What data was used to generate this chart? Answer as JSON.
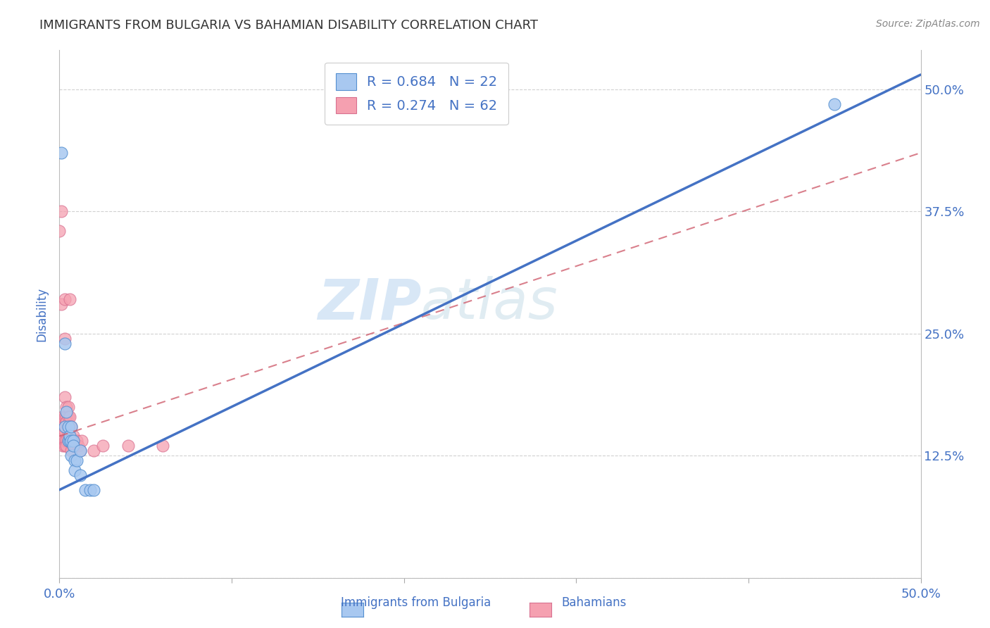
{
  "title": "IMMIGRANTS FROM BULGARIA VS BAHAMIAN DISABILITY CORRELATION CHART",
  "source": "Source: ZipAtlas.com",
  "ylabel": "Disability",
  "yticks": [
    0.0,
    0.125,
    0.25,
    0.375,
    0.5
  ],
  "ytick_labels": [
    "",
    "12.5%",
    "25.0%",
    "37.5%",
    "50.0%"
  ],
  "xlim": [
    0.0,
    0.5
  ],
  "ylim": [
    0.0,
    0.54
  ],
  "legend_line1": "R = 0.684   N = 22",
  "legend_line2": "R = 0.274   N = 62",
  "watermark_zip": "ZIP",
  "watermark_atlas": "atlas",
  "blue_scatter": [
    [
      0.001,
      0.435
    ],
    [
      0.003,
      0.24
    ],
    [
      0.003,
      0.155
    ],
    [
      0.004,
      0.17
    ],
    [
      0.005,
      0.155
    ],
    [
      0.005,
      0.14
    ],
    [
      0.006,
      0.14
    ],
    [
      0.006,
      0.145
    ],
    [
      0.007,
      0.14
    ],
    [
      0.007,
      0.155
    ],
    [
      0.007,
      0.125
    ],
    [
      0.008,
      0.14
    ],
    [
      0.008,
      0.135
    ],
    [
      0.009,
      0.12
    ],
    [
      0.009,
      0.11
    ],
    [
      0.01,
      0.12
    ],
    [
      0.012,
      0.105
    ],
    [
      0.012,
      0.13
    ],
    [
      0.015,
      0.09
    ],
    [
      0.018,
      0.09
    ],
    [
      0.02,
      0.09
    ],
    [
      0.45,
      0.485
    ]
  ],
  "pink_scatter": [
    [
      0.0,
      0.355
    ],
    [
      0.0,
      0.14
    ],
    [
      0.0,
      0.14
    ],
    [
      0.001,
      0.375
    ],
    [
      0.001,
      0.28
    ],
    [
      0.001,
      0.155
    ],
    [
      0.001,
      0.155
    ],
    [
      0.001,
      0.16
    ],
    [
      0.001,
      0.16
    ],
    [
      0.001,
      0.16
    ],
    [
      0.001,
      0.155
    ],
    [
      0.001,
      0.15
    ],
    [
      0.001,
      0.14
    ],
    [
      0.001,
      0.14
    ],
    [
      0.001,
      0.14
    ],
    [
      0.002,
      0.165
    ],
    [
      0.002,
      0.16
    ],
    [
      0.002,
      0.155
    ],
    [
      0.002,
      0.15
    ],
    [
      0.002,
      0.15
    ],
    [
      0.002,
      0.145
    ],
    [
      0.002,
      0.14
    ],
    [
      0.002,
      0.14
    ],
    [
      0.002,
      0.14
    ],
    [
      0.002,
      0.135
    ],
    [
      0.003,
      0.285
    ],
    [
      0.003,
      0.245
    ],
    [
      0.003,
      0.185
    ],
    [
      0.003,
      0.165
    ],
    [
      0.003,
      0.155
    ],
    [
      0.003,
      0.155
    ],
    [
      0.003,
      0.15
    ],
    [
      0.003,
      0.14
    ],
    [
      0.003,
      0.135
    ],
    [
      0.004,
      0.175
    ],
    [
      0.004,
      0.165
    ],
    [
      0.004,
      0.16
    ],
    [
      0.004,
      0.14
    ],
    [
      0.004,
      0.135
    ],
    [
      0.005,
      0.175
    ],
    [
      0.005,
      0.165
    ],
    [
      0.005,
      0.155
    ],
    [
      0.005,
      0.15
    ],
    [
      0.005,
      0.14
    ],
    [
      0.006,
      0.285
    ],
    [
      0.006,
      0.165
    ],
    [
      0.006,
      0.155
    ],
    [
      0.006,
      0.14
    ],
    [
      0.007,
      0.155
    ],
    [
      0.007,
      0.14
    ],
    [
      0.007,
      0.13
    ],
    [
      0.008,
      0.145
    ],
    [
      0.008,
      0.135
    ],
    [
      0.009,
      0.135
    ],
    [
      0.01,
      0.14
    ],
    [
      0.011,
      0.135
    ],
    [
      0.012,
      0.13
    ],
    [
      0.013,
      0.14
    ],
    [
      0.02,
      0.13
    ],
    [
      0.025,
      0.135
    ],
    [
      0.04,
      0.135
    ],
    [
      0.06,
      0.135
    ]
  ],
  "blue_line_x": [
    0.0,
    0.5
  ],
  "blue_line_y": [
    0.09,
    0.515
  ],
  "pink_line_x": [
    0.0,
    0.5
  ],
  "pink_line_y": [
    0.145,
    0.435
  ],
  "blue_line_color": "#4472c4",
  "pink_line_color": "#d06070",
  "scatter_blue_color": "#a8c8f0",
  "scatter_pink_color": "#f5a0b0",
  "scatter_blue_edge": "#5590d0",
  "scatter_pink_edge": "#d87090",
  "grid_color": "#cccccc",
  "title_color": "#333333",
  "axis_label_color": "#4472c4",
  "background_color": "#ffffff"
}
